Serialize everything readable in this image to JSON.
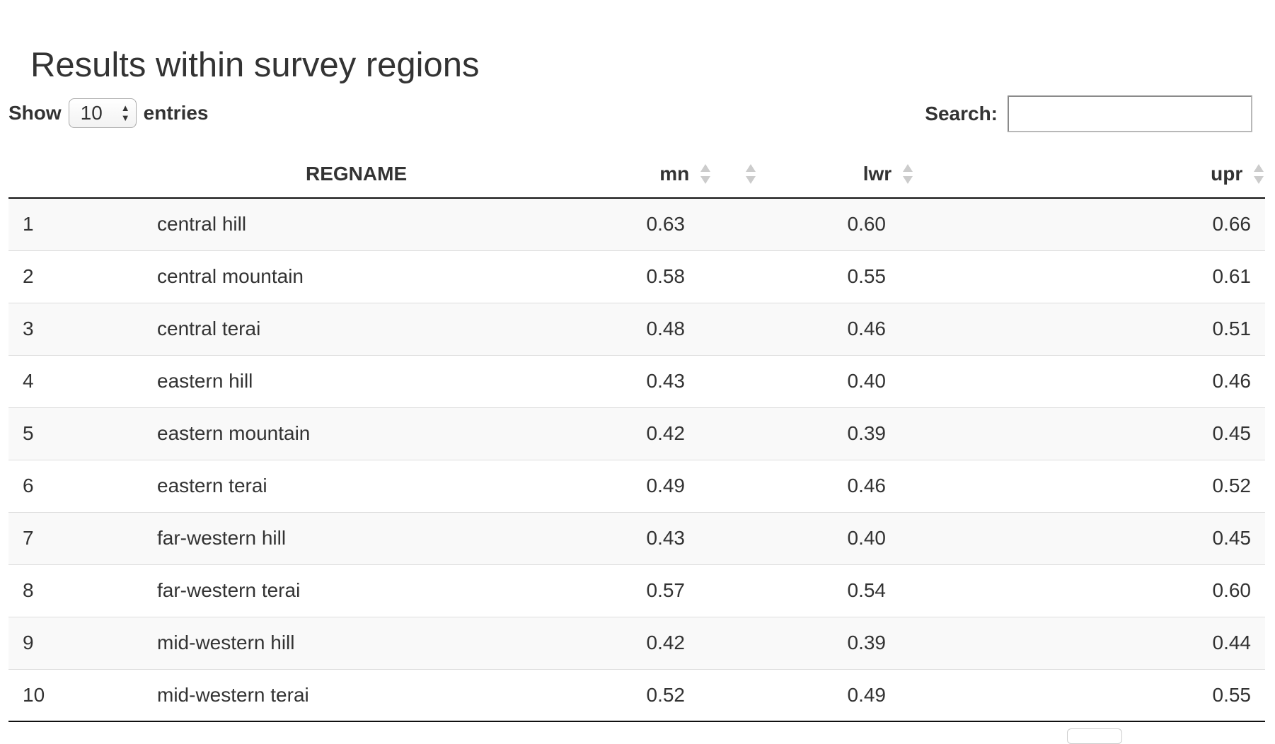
{
  "page": {
    "title": "Results within survey regions"
  },
  "length": {
    "show_label": "Show",
    "selected": "10",
    "entries_label": "entries"
  },
  "search": {
    "label": "Search:",
    "value": ""
  },
  "table": {
    "columns": [
      "",
      "REGNAME",
      "mn",
      "lwr",
      "upr"
    ],
    "rows": [
      {
        "idx": "1",
        "name": "central hill",
        "mn": "0.63",
        "lwr": "0.60",
        "upr": "0.66"
      },
      {
        "idx": "2",
        "name": "central mountain",
        "mn": "0.58",
        "lwr": "0.55",
        "upr": "0.61"
      },
      {
        "idx": "3",
        "name": "central terai",
        "mn": "0.48",
        "lwr": "0.46",
        "upr": "0.51"
      },
      {
        "idx": "4",
        "name": "eastern hill",
        "mn": "0.43",
        "lwr": "0.40",
        "upr": "0.46"
      },
      {
        "idx": "5",
        "name": "eastern mountain",
        "mn": "0.42",
        "lwr": "0.39",
        "upr": "0.45"
      },
      {
        "idx": "6",
        "name": "eastern terai",
        "mn": "0.49",
        "lwr": "0.46",
        "upr": "0.52"
      },
      {
        "idx": "7",
        "name": "far-western hill",
        "mn": "0.43",
        "lwr": "0.40",
        "upr": "0.45"
      },
      {
        "idx": "8",
        "name": "far-western terai",
        "mn": "0.57",
        "lwr": "0.54",
        "upr": "0.60"
      },
      {
        "idx": "9",
        "name": "mid-western hill",
        "mn": "0.42",
        "lwr": "0.39",
        "upr": "0.44"
      },
      {
        "idx": "10",
        "name": "mid-western terai",
        "mn": "0.52",
        "lwr": "0.49",
        "upr": "0.55"
      }
    ]
  },
  "colors": {
    "text": "#333333",
    "row_stripe": "#f9f9f9",
    "row_border": "#dddddd",
    "header_border": "#111111",
    "sort_icon": "#cccccc"
  },
  "icons": {
    "sort": "sort-both-icon",
    "select_arrows": "select-arrows-icon"
  }
}
